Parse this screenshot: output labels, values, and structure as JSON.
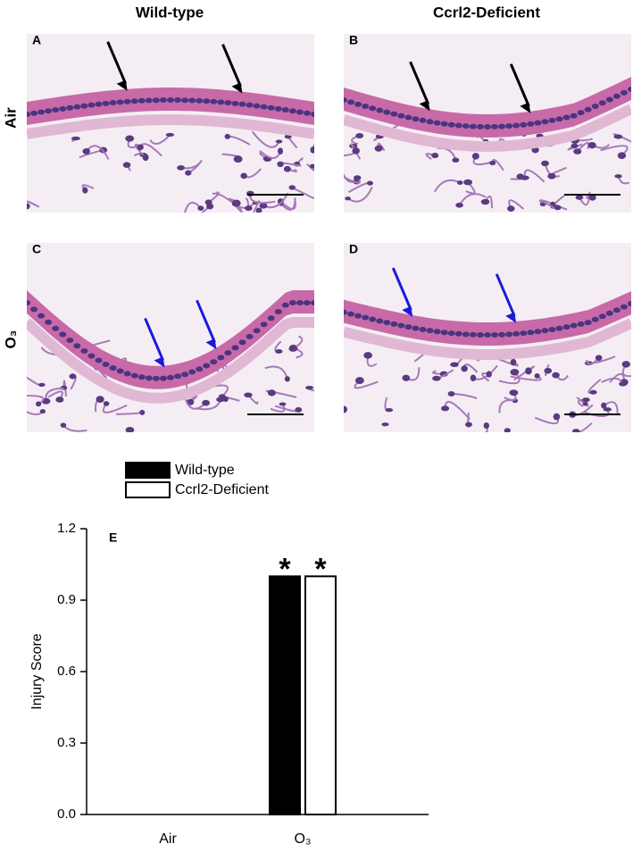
{
  "figure": {
    "column_headers": [
      "Wild-type",
      "Ccrl2-Deficient"
    ],
    "row_labels": [
      "Air",
      "O₃"
    ],
    "panels": [
      "A",
      "B",
      "C",
      "D"
    ]
  },
  "chart_data": {
    "type": "bar",
    "panel_label": "E",
    "y_label": "Injury Score",
    "categories": [
      "Air",
      "O₃"
    ],
    "series": [
      {
        "name": "Wild-type",
        "color": "#000000",
        "values": [
          0,
          1
        ]
      },
      {
        "name": "Ccrl2-Deficient",
        "color": "#ffffff",
        "values": [
          0,
          1
        ]
      }
    ],
    "annotations": [
      "*",
      "*"
    ],
    "ylim": [
      0,
      1.2
    ],
    "yticks": [
      {
        "value": 0,
        "label": "0.0"
      },
      {
        "value": 0.3,
        "label": "0.3"
      },
      {
        "value": 0.6,
        "label": "0.6"
      },
      {
        "value": 0.9,
        "label": "0.9"
      },
      {
        "value": 1.2,
        "label": "1.2"
      }
    ]
  }
}
